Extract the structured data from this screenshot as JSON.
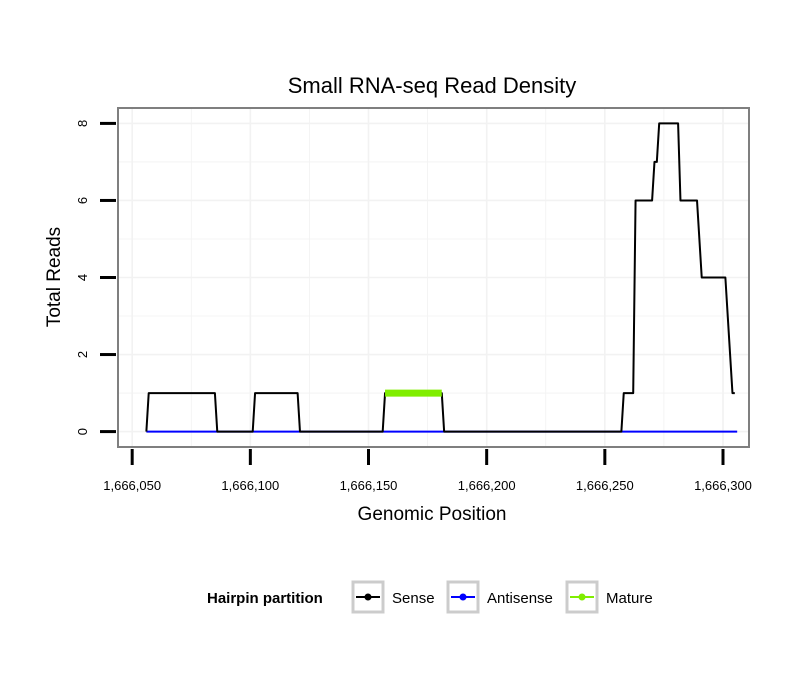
{
  "chart_data": {
    "type": "line",
    "title": "Small RNA-seq Read Density",
    "xlabel": "Genomic Position",
    "ylabel": "Total Reads",
    "xlim": [
      1666044,
      1666311
    ],
    "ylim": [
      -0.4,
      8.4
    ],
    "x_ticks": [
      1666050,
      1666100,
      1666150,
      1666200,
      1666250,
      1666300
    ],
    "x_tick_labels": [
      "1,666,050",
      "1,666,100",
      "1,666,150",
      "1,666,200",
      "1,666,250",
      "1,666,300"
    ],
    "y_ticks": [
      0,
      2,
      4,
      6,
      8
    ],
    "y_tick_labels": [
      "0",
      "2",
      "4",
      "6",
      "8"
    ],
    "grid": true,
    "legend": {
      "title": "Hairpin partition",
      "position": "bottom",
      "entries": [
        {
          "name": "Sense",
          "color": "#000000"
        },
        {
          "name": "Antisense",
          "color": "#0000ff"
        },
        {
          "name": "Mature",
          "color": "#80ee00"
        }
      ]
    },
    "series": [
      {
        "name": "Sense",
        "color": "#000000",
        "x": [
          1666056,
          1666057,
          1666085,
          1666086,
          1666101,
          1666102,
          1666120,
          1666121,
          1666156,
          1666157,
          1666181,
          1666182,
          1666257,
          1666258,
          1666262,
          1666263,
          1666270,
          1666271,
          1666272,
          1666273,
          1666281,
          1666282,
          1666289,
          1666291,
          1666298,
          1666299,
          1666301,
          1666302,
          1666304,
          1666305
        ],
        "y": [
          0,
          1,
          1,
          0,
          0,
          1,
          1,
          0,
          0,
          1,
          1,
          0,
          0,
          1,
          1,
          6,
          6,
          7,
          7,
          8,
          8,
          6,
          6,
          4,
          4,
          4,
          4,
          3,
          1,
          1
        ]
      },
      {
        "name": "Antisense",
        "color": "#0000ff",
        "x": [
          1666056,
          1666306
        ],
        "y": [
          0,
          0
        ]
      },
      {
        "name": "Mature",
        "color": "#80ee00",
        "x": [
          1666157,
          1666181
        ],
        "y": [
          1,
          1
        ]
      }
    ]
  }
}
